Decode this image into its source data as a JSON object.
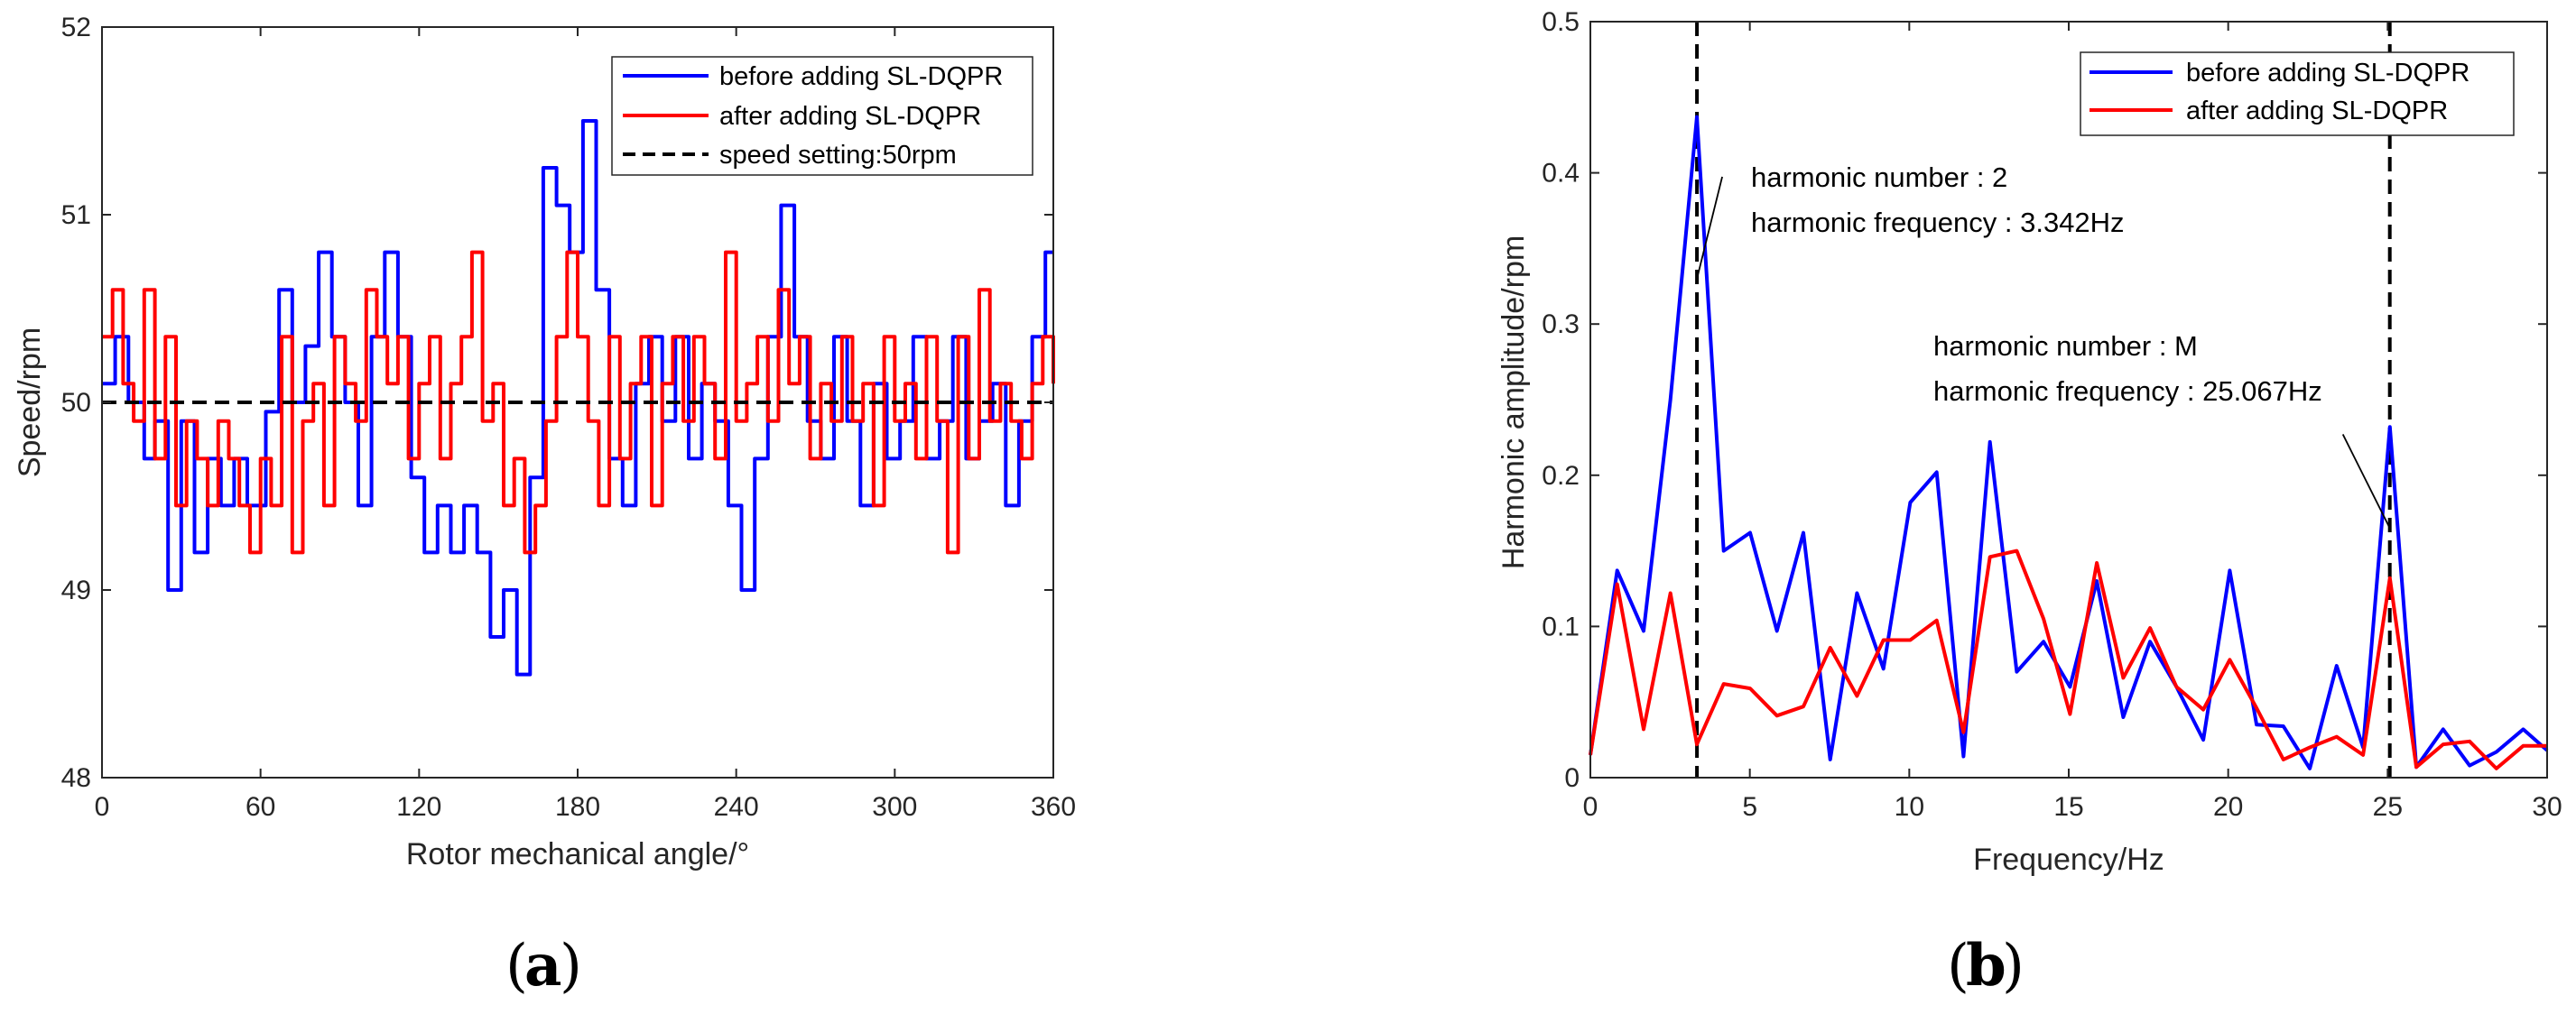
{
  "chart_data": [
    {
      "type": "line",
      "panel_label": "a",
      "xlabel": "Rotor mechanical angle/°",
      "ylabel": "Speed/rpm",
      "xlim": [
        0,
        360
      ],
      "ylim": [
        48,
        52
      ],
      "xticks": [
        0,
        60,
        120,
        180,
        240,
        300,
        360
      ],
      "yticks": [
        48,
        49,
        50,
        51,
        52
      ],
      "legend_position": "top-right",
      "series": [
        {
          "name": "before adding SL-DQPR",
          "color": "#0000ff",
          "style": "step",
          "x": [
            0,
            5,
            10,
            16,
            20,
            25,
            30,
            35,
            40,
            45,
            50,
            55,
            62,
            67,
            72,
            77,
            82,
            87,
            92,
            97,
            102,
            107,
            112,
            117,
            122,
            127,
            132,
            137,
            142,
            147,
            152,
            157,
            162,
            167,
            172,
            177,
            182,
            187,
            192,
            197,
            202,
            207,
            212,
            217,
            222,
            227,
            232,
            237,
            242,
            247,
            252,
            257,
            262,
            267,
            272,
            277,
            282,
            287,
            292,
            297,
            302,
            307,
            312,
            317,
            322,
            327,
            332,
            337,
            342,
            347,
            352,
            357,
            360
          ],
          "values": [
            50.1,
            50.35,
            50.0,
            49.7,
            49.9,
            49.0,
            49.9,
            49.2,
            49.7,
            49.45,
            49.7,
            49.45,
            49.95,
            50.6,
            50.0,
            50.3,
            50.8,
            50.35,
            50.0,
            49.45,
            50.35,
            50.8,
            50.35,
            49.6,
            49.2,
            49.45,
            49.2,
            49.45,
            49.2,
            48.75,
            49.0,
            48.55,
            49.6,
            51.25,
            51.05,
            50.8,
            51.5,
            50.6,
            49.7,
            49.45,
            50.1,
            50.35,
            49.9,
            50.35,
            49.7,
            50.1,
            49.9,
            49.45,
            49.0,
            49.7,
            50.35,
            51.05,
            50.35,
            49.9,
            49.7,
            50.35,
            49.9,
            49.45,
            50.1,
            49.7,
            49.9,
            50.35,
            49.7,
            49.9,
            50.35,
            49.7,
            49.9,
            50.1,
            49.45,
            49.9,
            50.35,
            50.8,
            50.8
          ]
        },
        {
          "name": "after adding SL-DQPR",
          "color": "#ff0000",
          "style": "step",
          "x": [
            0,
            4,
            8,
            12,
            16,
            20,
            24,
            28,
            32,
            36,
            40,
            44,
            48,
            52,
            56,
            60,
            64,
            68,
            72,
            76,
            80,
            84,
            88,
            92,
            96,
            100,
            104,
            108,
            112,
            116,
            120,
            124,
            128,
            132,
            136,
            140,
            144,
            148,
            152,
            156,
            160,
            164,
            168,
            172,
            176,
            180,
            184,
            188,
            192,
            196,
            200,
            204,
            208,
            212,
            216,
            220,
            224,
            228,
            232,
            236,
            240,
            244,
            248,
            252,
            256,
            260,
            264,
            268,
            272,
            276,
            280,
            284,
            288,
            292,
            296,
            300,
            304,
            308,
            312,
            316,
            320,
            324,
            328,
            332,
            336,
            340,
            344,
            348,
            352,
            356,
            360
          ],
          "values": [
            50.35,
            50.6,
            50.1,
            49.9,
            50.6,
            49.7,
            50.35,
            49.45,
            49.9,
            49.7,
            49.45,
            49.9,
            49.7,
            49.45,
            49.2,
            49.7,
            49.45,
            50.35,
            49.2,
            49.9,
            50.1,
            49.45,
            50.35,
            50.1,
            49.9,
            50.6,
            50.35,
            50.1,
            50.35,
            49.7,
            50.1,
            50.35,
            49.7,
            50.1,
            50.35,
            50.8,
            49.9,
            50.1,
            49.45,
            49.7,
            49.2,
            49.45,
            49.9,
            50.35,
            50.8,
            50.35,
            49.9,
            49.45,
            50.35,
            49.7,
            50.1,
            50.35,
            49.45,
            50.1,
            50.35,
            49.9,
            50.35,
            50.1,
            49.7,
            50.8,
            49.9,
            50.1,
            50.35,
            49.9,
            50.6,
            50.1,
            50.35,
            49.7,
            50.1,
            49.9,
            50.35,
            49.9,
            50.1,
            49.45,
            50.35,
            49.9,
            50.1,
            49.7,
            50.35,
            49.9,
            49.2,
            50.35,
            49.7,
            50.6,
            49.9,
            50.1,
            49.9,
            49.7,
            50.1,
            50.35,
            50.1
          ]
        },
        {
          "name": "speed setting:50rpm",
          "color": "#000000",
          "style": "dashed",
          "x": [
            0,
            360
          ],
          "values": [
            50,
            50
          ]
        }
      ]
    },
    {
      "type": "line",
      "panel_label": "b",
      "xlabel": "Frequency/Hz",
      "ylabel": "Harmonic amplitude/rpm",
      "xlim": [
        0,
        30
      ],
      "ylim": [
        0,
        0.5
      ],
      "xticks": [
        0,
        5,
        10,
        15,
        20,
        25,
        30
      ],
      "yticks": [
        0,
        0.1,
        0.2,
        0.3,
        0.4,
        0.5
      ],
      "legend_position": "top-right",
      "series": [
        {
          "name": "before adding SL-DQPR",
          "color": "#0000ff",
          "x": [
            0,
            0.84,
            1.67,
            2.51,
            3.34,
            4.18,
            5.01,
            5.85,
            6.68,
            7.52,
            8.36,
            9.19,
            10.03,
            10.86,
            11.7,
            12.53,
            13.37,
            14.21,
            15.04,
            15.88,
            16.71,
            17.55,
            18.38,
            19.22,
            20.05,
            20.89,
            21.73,
            22.56,
            23.4,
            24.23,
            25.07,
            25.9,
            26.74,
            27.57,
            28.41,
            29.25,
            30
          ],
          "values": [
            0.015,
            0.137,
            0.097,
            0.25,
            0.437,
            0.15,
            0.162,
            0.097,
            0.162,
            0.012,
            0.122,
            0.072,
            0.182,
            0.202,
            0.014,
            0.222,
            0.07,
            0.09,
            0.06,
            0.13,
            0.04,
            0.09,
            0.06,
            0.025,
            0.137,
            0.035,
            0.034,
            0.006,
            0.074,
            0.02,
            0.232,
            0.007,
            0.032,
            0.008,
            0.017,
            0.032,
            0.018
          ]
        },
        {
          "name": "after adding SL-DQPR",
          "color": "#ff0000",
          "x": [
            0,
            0.84,
            1.67,
            2.51,
            3.34,
            4.18,
            5.01,
            5.85,
            6.68,
            7.52,
            8.36,
            9.19,
            10.03,
            10.86,
            11.7,
            12.53,
            13.37,
            14.21,
            15.04,
            15.88,
            16.71,
            17.55,
            18.38,
            19.22,
            20.05,
            20.89,
            21.73,
            22.56,
            23.4,
            24.23,
            25.07,
            25.9,
            26.74,
            27.57,
            28.41,
            29.25,
            30
          ],
          "values": [
            0.015,
            0.128,
            0.032,
            0.122,
            0.022,
            0.062,
            0.059,
            0.041,
            0.047,
            0.086,
            0.054,
            0.091,
            0.091,
            0.104,
            0.03,
            0.146,
            0.15,
            0.105,
            0.042,
            0.142,
            0.066,
            0.099,
            0.06,
            0.045,
            0.078,
            0.046,
            0.012,
            0.02,
            0.027,
            0.015,
            0.132,
            0.007,
            0.022,
            0.024,
            0.006,
            0.021,
            0.021
          ]
        }
      ],
      "vlines": [
        {
          "x": 3.342,
          "color": "#000000",
          "style": "dashed"
        },
        {
          "x": 25.067,
          "color": "#000000",
          "style": "dashed"
        }
      ],
      "annotations": [
        {
          "lines": [
            "harmonic number : 2",
            "harmonic frequency : 3.342Hz"
          ],
          "target": {
            "x": 3.342,
            "y": 0.33
          }
        },
        {
          "lines": [
            "harmonic number : M",
            "harmonic frequency : 25.067Hz"
          ],
          "target": {
            "x": 25.067,
            "y": 0.165
          }
        }
      ]
    }
  ]
}
